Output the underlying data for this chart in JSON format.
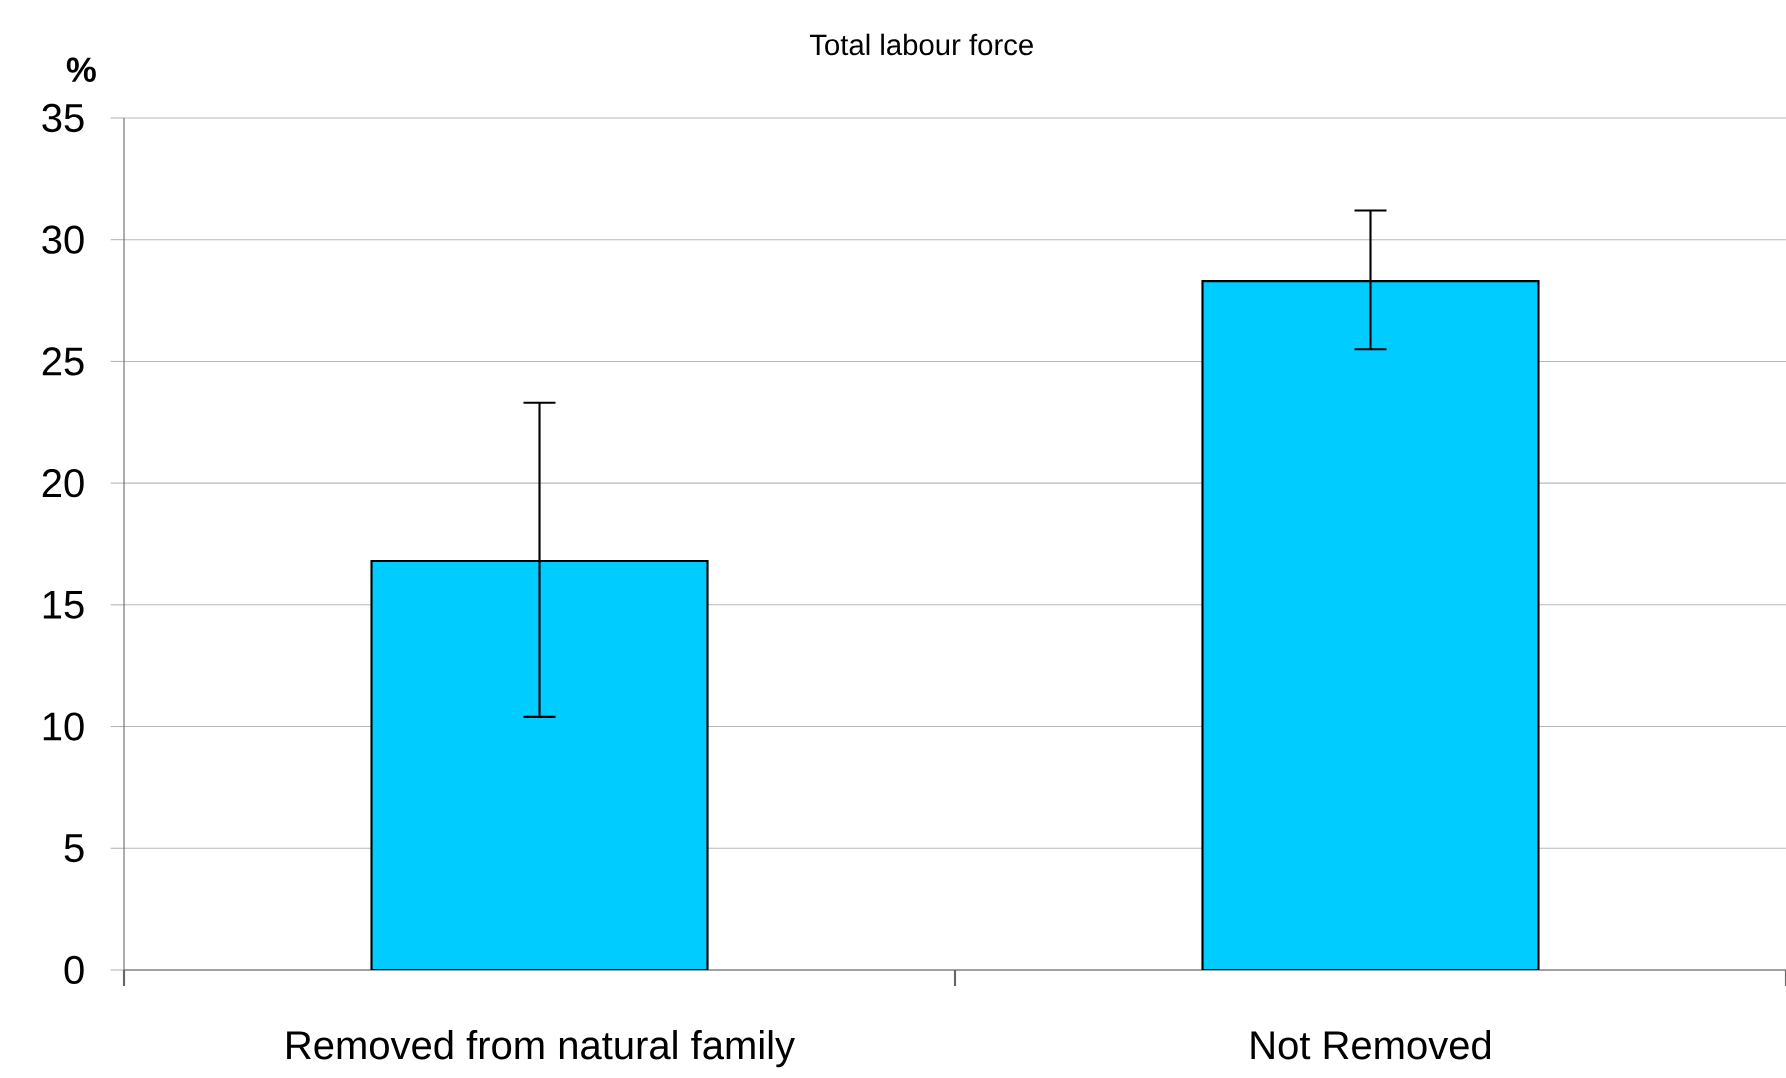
{
  "chart_data": {
    "type": "bar",
    "title": "Total labour force",
    "ylabel": "%",
    "categories": [
      "Removed from natural family",
      "Not Removed"
    ],
    "values": [
      16.8,
      28.3
    ],
    "errors": [
      [
        10.4,
        23.3
      ],
      [
        25.5,
        31.2
      ]
    ],
    "color": "#00ccff",
    "ylim": [
      0,
      35
    ],
    "yticks": [
      0,
      5,
      10,
      15,
      20,
      25,
      30,
      35
    ],
    "grid": "y"
  }
}
